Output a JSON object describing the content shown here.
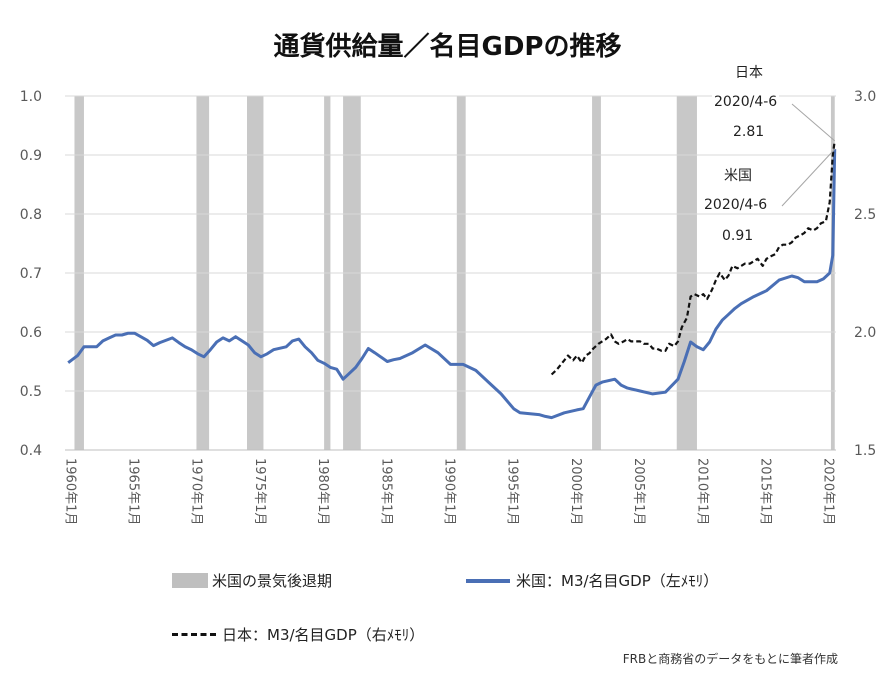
{
  "title": "通貨供給量／名目GDPの推移",
  "note": "FRBと商務省のデータをもとに筆者作成",
  "legend": {
    "recession": "米国の景気後退期",
    "us": "米国：M3/名目GDP（左ﾒﾓﾘ）",
    "jp": "日本：M3/名目GDP（右ﾒﾓﾘ）"
  },
  "annotations": {
    "jp_label": "日本",
    "jp_date": "2020/4-6",
    "jp_value": "2.81",
    "us_label": "米国",
    "us_date": "2020/4-6",
    "us_value": "0.91"
  },
  "colors": {
    "us": "#4a6fb5",
    "jp": "#111111",
    "recession": "#c8c8c8"
  },
  "chart_data": {
    "type": "line",
    "title": "通貨供給量／名目GDPの推移",
    "xlim": [
      1959.5,
      2020.5
    ],
    "x_ticks": [
      "1960年1月",
      "1965年1月",
      "1970年1月",
      "1975年1月",
      "1980年1月",
      "1985年1月",
      "1990年1月",
      "1995年1月",
      "2000年1月",
      "2005年1月",
      "2010年1月",
      "2015年1月",
      "2020年1月"
    ],
    "y_left": {
      "ylim": [
        0.4,
        1.0
      ],
      "ticks": [
        "0.4",
        "0.5",
        "0.6",
        "0.7",
        "0.8",
        "0.9",
        "1.0"
      ]
    },
    "y_right": {
      "ylim": [
        1.5,
        3.0
      ],
      "ticks": [
        "1.5",
        "2.0",
        "2.5",
        "3.0"
      ]
    },
    "grid": "horizontal",
    "recessions": [
      [
        1960.25,
        1961.0
      ],
      [
        1969.9,
        1970.9
      ],
      [
        1973.9,
        1975.2
      ],
      [
        1980.0,
        1980.5
      ],
      [
        1981.5,
        1982.9
      ],
      [
        1990.5,
        1991.2
      ],
      [
        2001.2,
        2001.9
      ],
      [
        2007.9,
        2009.5
      ],
      [
        2020.1,
        2020.4
      ]
    ],
    "series": [
      {
        "name": "米国：M3/名目GDP（左ﾒﾓﾘ）",
        "axis": "left",
        "x": [
          1959.75,
          1960.5,
          1961.0,
          1962.0,
          1962.5,
          1963.0,
          1963.5,
          1964.0,
          1964.5,
          1965.0,
          1965.5,
          1966.0,
          1966.5,
          1967.0,
          1968.0,
          1968.5,
          1969.0,
          1969.5,
          1970.0,
          1970.5,
          1971.0,
          1971.5,
          1972.0,
          1972.5,
          1973.0,
          1973.5,
          1974.0,
          1974.5,
          1975.0,
          1975.5,
          1976.0,
          1977.0,
          1977.5,
          1978.0,
          1978.5,
          1979.0,
          1979.5,
          1980.0,
          1980.5,
          1981.0,
          1981.5,
          1982.0,
          1982.5,
          1983.0,
          1983.5,
          1984.0,
          1985.0,
          1985.5,
          1986.0,
          1987.0,
          1988.0,
          1989.0,
          1990.0,
          1991.0,
          1992.0,
          1993.0,
          1994.0,
          1995.0,
          1995.5,
          1996.0,
          1997.0,
          1997.5,
          1998.0,
          1999.0,
          2000.0,
          2000.5,
          2001.0,
          2001.5,
          2002.0,
          2003.0,
          2003.5,
          2004.0,
          2005.0,
          2006.0,
          2007.0,
          2008.0,
          2008.5,
          2009.0,
          2009.5,
          2010.0,
          2010.5,
          2011.0,
          2011.5,
          2012.0,
          2012.5,
          2013.0,
          2014.0,
          2015.0,
          2016.0,
          2017.0,
          2017.5,
          2018.0,
          2019.0,
          2019.5,
          2020.0,
          2020.25,
          2020.4
        ],
        "values": [
          0.548,
          0.56,
          0.575,
          0.575,
          0.585,
          0.59,
          0.595,
          0.595,
          0.598,
          0.598,
          0.592,
          0.586,
          0.577,
          0.582,
          0.59,
          0.582,
          0.575,
          0.57,
          0.563,
          0.558,
          0.57,
          0.583,
          0.59,
          0.585,
          0.592,
          0.585,
          0.578,
          0.565,
          0.558,
          0.563,
          0.57,
          0.575,
          0.585,
          0.588,
          0.575,
          0.565,
          0.552,
          0.547,
          0.54,
          0.537,
          0.52,
          0.53,
          0.54,
          0.555,
          0.572,
          0.565,
          0.55,
          0.553,
          0.555,
          0.565,
          0.578,
          0.565,
          0.545,
          0.545,
          0.535,
          0.515,
          0.495,
          0.47,
          0.463,
          0.462,
          0.46,
          0.457,
          0.455,
          0.463,
          0.468,
          0.47,
          0.49,
          0.51,
          0.515,
          0.52,
          0.51,
          0.505,
          0.5,
          0.495,
          0.498,
          0.52,
          0.55,
          0.583,
          0.575,
          0.57,
          0.583,
          0.605,
          0.62,
          0.63,
          0.64,
          0.648,
          0.66,
          0.67,
          0.688,
          0.695,
          0.692,
          0.685,
          0.685,
          0.69,
          0.7,
          0.73,
          0.91
        ]
      },
      {
        "name": "日本：M3/名目GDP（右ﾒﾓﾘ）",
        "axis": "right",
        "x": [
          1998.0,
          1998.4,
          1998.7,
          1999.0,
          1999.3,
          1999.7,
          2000.0,
          2000.4,
          2000.7,
          2001.0,
          2001.3,
          2001.7,
          2002.0,
          2002.3,
          2002.7,
          2003.0,
          2003.3,
          2003.7,
          2004.0,
          2004.3,
          2004.7,
          2005.0,
          2005.3,
          2005.7,
          2006.0,
          2006.3,
          2006.7,
          2007.0,
          2007.3,
          2007.7,
          2008.0,
          2008.3,
          2008.7,
          2009.0,
          2009.3,
          2009.7,
          2010.0,
          2010.3,
          2010.7,
          2011.0,
          2011.3,
          2011.7,
          2012.0,
          2012.3,
          2012.7,
          2013.0,
          2013.3,
          2013.7,
          2014.0,
          2014.3,
          2014.7,
          2015.0,
          2015.3,
          2015.7,
          2016.0,
          2016.3,
          2016.7,
          2017.0,
          2017.3,
          2017.7,
          2018.0,
          2018.3,
          2018.7,
          2019.0,
          2019.3,
          2019.7,
          2020.0,
          2020.25,
          2020.4
        ],
        "values": [
          1.82,
          1.84,
          1.86,
          1.88,
          1.9,
          1.88,
          1.9,
          1.87,
          1.9,
          1.91,
          1.93,
          1.95,
          1.96,
          1.97,
          1.99,
          1.96,
          1.95,
          1.96,
          1.97,
          1.96,
          1.96,
          1.96,
          1.95,
          1.95,
          1.93,
          1.93,
          1.92,
          1.92,
          1.95,
          1.94,
          1.96,
          2.02,
          2.06,
          2.15,
          2.16,
          2.15,
          2.16,
          2.14,
          2.18,
          2.22,
          2.25,
          2.22,
          2.24,
          2.28,
          2.27,
          2.28,
          2.29,
          2.29,
          2.3,
          2.31,
          2.28,
          2.31,
          2.32,
          2.33,
          2.36,
          2.37,
          2.37,
          2.38,
          2.4,
          2.41,
          2.42,
          2.44,
          2.43,
          2.44,
          2.46,
          2.47,
          2.55,
          2.75,
          2.81
        ]
      }
    ]
  }
}
